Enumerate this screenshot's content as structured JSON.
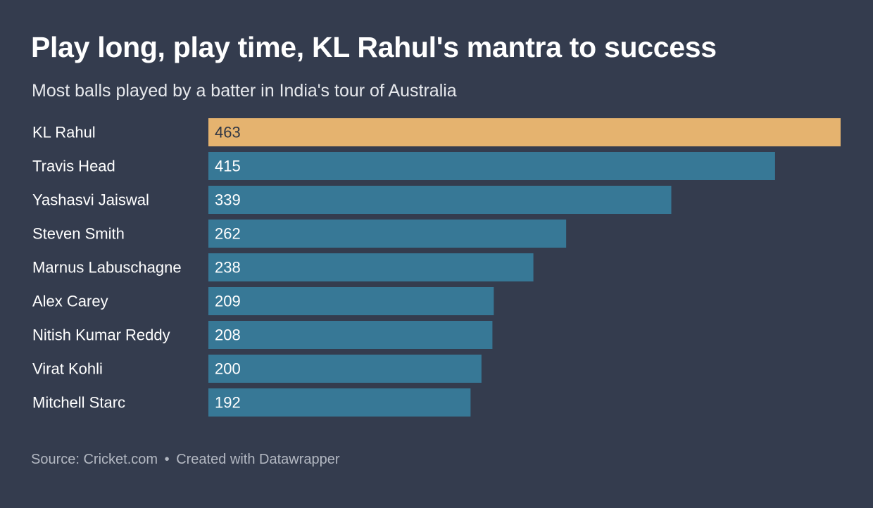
{
  "header": {
    "title": "Play long, play time, KL Rahul's mantra to success",
    "subtitle": "Most balls played by a batter in India's tour of Australia"
  },
  "footer": {
    "source": "Source: Cricket.com",
    "separator": "•",
    "credit": "Created with Datawrapper"
  },
  "colors": {
    "background": "#343c4e",
    "highlight_bar": "#e5b36f",
    "default_bar": "#377896",
    "highlight_label": "#2f3644",
    "default_label": "#ffffff"
  },
  "chart_data": {
    "type": "bar",
    "orientation": "horizontal",
    "categories": [
      "KL Rahul",
      "Travis Head",
      "Yashasvi Jaiswal",
      "Steven Smith",
      "Marnus Labuschagne",
      "Alex Carey",
      "Nitish Kumar Reddy",
      "Virat Kohli",
      "Mitchell Starc"
    ],
    "values": [
      463,
      415,
      339,
      262,
      238,
      209,
      208,
      200,
      192
    ],
    "highlighted": "KL Rahul",
    "xlim": [
      0,
      463
    ],
    "grid": false,
    "legend": "none"
  }
}
